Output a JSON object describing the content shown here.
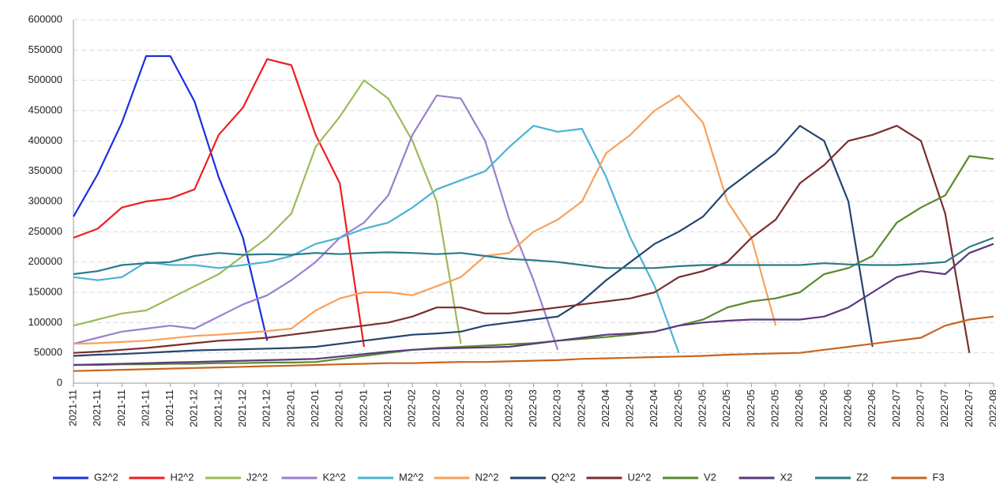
{
  "chart_data": {
    "type": "line",
    "categories": [
      "2021-11",
      "2021-11",
      "2021-11",
      "2021-11",
      "2021-11",
      "2021-12",
      "2021-12",
      "2021-12",
      "2021-12",
      "2022-01",
      "2022-01",
      "2022-01",
      "2022-01",
      "2022-01",
      "2022-02",
      "2022-02",
      "2022-02",
      "2022-03",
      "2022-03",
      "2022-03",
      "2022-03",
      "2022-04",
      "2022-04",
      "2022-04",
      "2022-04",
      "2022-05",
      "2022-05",
      "2022-05",
      "2022-05",
      "2022-05",
      "2022-06",
      "2022-06",
      "2022-06",
      "2022-06",
      "2022-07",
      "2022-07",
      "2022-07",
      "2022-07",
      "2022-08"
    ],
    "ylim": [
      0,
      600000
    ],
    "yticks": [
      0,
      50000,
      100000,
      150000,
      200000,
      250000,
      300000,
      350000,
      400000,
      450000,
      500000,
      550000,
      600000
    ],
    "grid": true,
    "legend": "bottom",
    "series": [
      {
        "name": "G2^2",
        "color": "#1a2fe0",
        "values": [
          275000,
          345000,
          430000,
          540000,
          540000,
          465000,
          340000,
          240000,
          70000,
          null,
          null,
          null,
          null,
          null,
          null,
          null,
          null,
          null,
          null,
          null,
          null,
          null,
          null,
          null,
          null,
          null,
          null,
          null,
          null,
          null,
          null,
          null,
          null,
          null,
          null,
          null,
          null,
          null,
          null
        ]
      },
      {
        "name": "H2^2",
        "color": "#f01e1e",
        "values": [
          240000,
          255000,
          290000,
          300000,
          305000,
          320000,
          410000,
          455000,
          535000,
          525000,
          410000,
          330000,
          60000,
          null,
          null,
          null,
          null,
          null,
          null,
          null,
          null,
          null,
          null,
          null,
          null,
          null,
          null,
          null,
          null,
          null,
          null,
          null,
          null,
          null,
          null,
          null,
          null,
          null,
          null
        ]
      },
      {
        "name": "J2^2",
        "color": "#9bbb59",
        "values": [
          95000,
          105000,
          115000,
          120000,
          140000,
          160000,
          180000,
          210000,
          240000,
          280000,
          390000,
          440000,
          500000,
          470000,
          400000,
          300000,
          65000,
          null,
          null,
          null,
          null,
          null,
          null,
          null,
          null,
          null,
          null,
          null,
          null,
          null,
          null,
          null,
          null,
          null,
          null,
          null,
          null,
          null,
          null
        ]
      },
      {
        "name": "K2^2",
        "color": "#9a7fcf",
        "values": [
          65000,
          75000,
          85000,
          90000,
          95000,
          90000,
          110000,
          130000,
          145000,
          170000,
          200000,
          240000,
          265000,
          310000,
          410000,
          475000,
          470000,
          400000,
          270000,
          170000,
          55000,
          null,
          null,
          null,
          null,
          null,
          null,
          null,
          null,
          null,
          null,
          null,
          null,
          null,
          null,
          null,
          null,
          null,
          null
        ]
      },
      {
        "name": "M2^2",
        "color": "#4bb3d4",
        "values": [
          175000,
          170000,
          175000,
          200000,
          195000,
          195000,
          190000,
          195000,
          200000,
          210000,
          230000,
          240000,
          255000,
          265000,
          290000,
          320000,
          335000,
          350000,
          390000,
          425000,
          415000,
          420000,
          340000,
          240000,
          160000,
          50000,
          null,
          null,
          null,
          null,
          null,
          null,
          null,
          null,
          null,
          null,
          null,
          null,
          null
        ]
      },
      {
        "name": "N2^2",
        "color": "#f9a05a",
        "values": [
          65000,
          66000,
          68000,
          70000,
          74000,
          78000,
          80000,
          83000,
          86000,
          90000,
          120000,
          140000,
          150000,
          150000,
          145000,
          160000,
          175000,
          210000,
          215000,
          250000,
          270000,
          300000,
          380000,
          410000,
          450000,
          475000,
          430000,
          300000,
          240000,
          95000,
          null,
          null,
          null,
          null,
          null,
          null,
          null,
          null,
          null
        ]
      },
      {
        "name": "Q2^2",
        "color": "#24456e",
        "values": [
          45000,
          47000,
          48000,
          50000,
          52000,
          54000,
          55000,
          56000,
          57000,
          58000,
          60000,
          65000,
          70000,
          75000,
          80000,
          82000,
          85000,
          95000,
          100000,
          105000,
          110000,
          135000,
          170000,
          200000,
          230000,
          250000,
          275000,
          320000,
          350000,
          380000,
          425000,
          400000,
          300000,
          60000,
          null,
          null,
          null,
          null,
          null
        ]
      },
      {
        "name": "U2^2",
        "color": "#7a2e2e",
        "values": [
          50000,
          52000,
          55000,
          58000,
          62000,
          66000,
          70000,
          72000,
          75000,
          80000,
          85000,
          90000,
          95000,
          100000,
          110000,
          125000,
          125000,
          115000,
          115000,
          120000,
          125000,
          130000,
          135000,
          140000,
          150000,
          175000,
          185000,
          200000,
          240000,
          270000,
          330000,
          360000,
          400000,
          410000,
          425000,
          400000,
          280000,
          50000,
          null
        ]
      },
      {
        "name": "V2",
        "color": "#5a8a2e",
        "values": [
          30000,
          30000,
          31000,
          31000,
          32000,
          32000,
          33000,
          33000,
          34000,
          34000,
          35000,
          40000,
          45000,
          50000,
          55000,
          58000,
          60000,
          62000,
          64000,
          66000,
          70000,
          73000,
          76000,
          80000,
          85000,
          95000,
          105000,
          125000,
          135000,
          140000,
          150000,
          180000,
          190000,
          210000,
          265000,
          290000,
          310000,
          375000,
          370000
        ]
      },
      {
        "name": "X2",
        "color": "#5b3a7d",
        "values": [
          30000,
          31000,
          32000,
          33000,
          34000,
          35000,
          36000,
          37000,
          38000,
          39000,
          40000,
          44000,
          48000,
          52000,
          55000,
          57000,
          58000,
          59000,
          60000,
          65000,
          70000,
          75000,
          80000,
          82000,
          85000,
          95000,
          100000,
          103000,
          105000,
          105000,
          105000,
          110000,
          125000,
          150000,
          175000,
          185000,
          180000,
          215000,
          230000
        ]
      },
      {
        "name": "Z2",
        "color": "#2b7a8a",
        "values": [
          180000,
          185000,
          195000,
          198000,
          200000,
          210000,
          215000,
          212000,
          213000,
          212000,
          215000,
          213000,
          215000,
          216000,
          215000,
          213000,
          215000,
          210000,
          205000,
          203000,
          200000,
          195000,
          190000,
          190000,
          190000,
          193000,
          195000,
          195000,
          195000,
          195000,
          195000,
          198000,
          196000,
          195000,
          195000,
          197000,
          200000,
          225000,
          240000
        ]
      },
      {
        "name": "F3",
        "color": "#c8651e",
        "values": [
          20000,
          21000,
          22000,
          23000,
          24000,
          25000,
          26000,
          27000,
          28000,
          29000,
          30000,
          31000,
          32000,
          33000,
          33000,
          34000,
          35000,
          35000,
          36000,
          37000,
          38000,
          40000,
          41000,
          42000,
          43000,
          44000,
          45000,
          47000,
          48000,
          49000,
          50000,
          55000,
          60000,
          65000,
          70000,
          75000,
          95000,
          105000,
          110000
        ]
      }
    ]
  }
}
